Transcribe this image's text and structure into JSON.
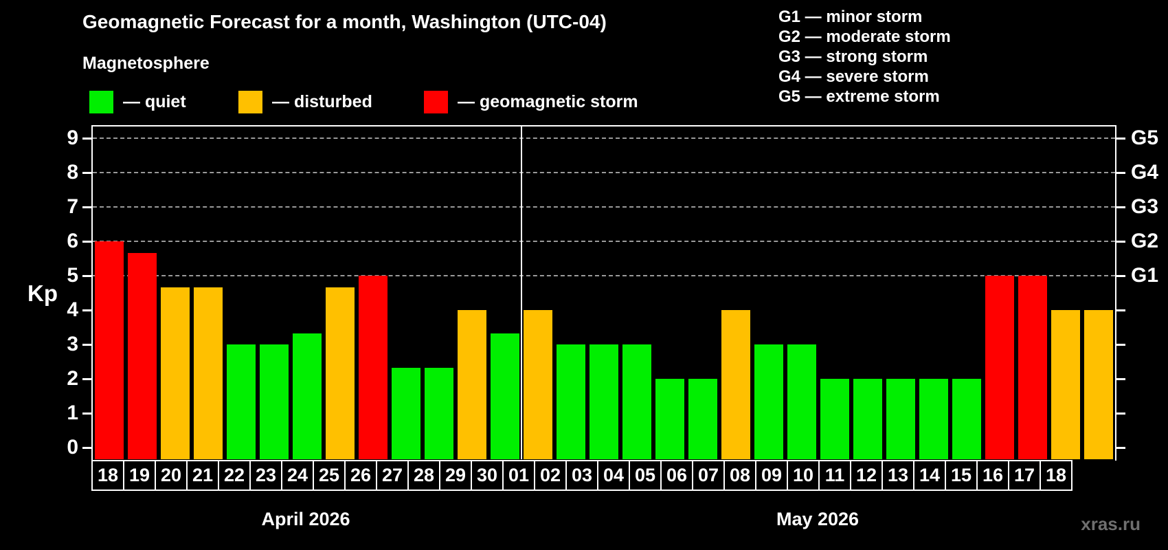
{
  "header": {
    "title": "Geomagnetic Forecast for a month, Washington (UTC-04)",
    "subtitle": "Magnetosphere",
    "legend": [
      {
        "key": "quiet",
        "label": "— quiet",
        "color": "#00ef00"
      },
      {
        "key": "disturbed",
        "label": "— disturbed",
        "color": "#ffc000"
      },
      {
        "key": "storm",
        "label": "— geomagnetic storm",
        "color": "#ff0000"
      }
    ],
    "g_scale_legend": [
      "G1 — minor storm",
      "G2 — moderate storm",
      "G3 — strong storm",
      "G4 — severe storm",
      "G5 — extreme storm"
    ]
  },
  "watermark": "xras.ru",
  "chart_data": {
    "type": "bar",
    "title": "Geomagnetic Forecast for a month, Washington (UTC-04)",
    "ylabel": "Kp",
    "ylim": [
      0,
      9
    ],
    "yticks": [
      0,
      1,
      2,
      3,
      4,
      5,
      6,
      7,
      8,
      9
    ],
    "gridlines_at": [
      5,
      6,
      7,
      8,
      9
    ],
    "grid": "dashed horizontal at storm levels only",
    "legend_position": "top",
    "g_levels": [
      {
        "kp": 5,
        "label": "G1"
      },
      {
        "kp": 6,
        "label": "G2"
      },
      {
        "kp": 7,
        "label": "G3"
      },
      {
        "kp": 8,
        "label": "G4"
      },
      {
        "kp": 9,
        "label": "G5"
      }
    ],
    "months": [
      {
        "key": "april",
        "label": "April 2026",
        "days": 13
      },
      {
        "key": "may",
        "label": "May 2026",
        "days": 18
      }
    ],
    "categories": [
      "18",
      "19",
      "20",
      "21",
      "22",
      "23",
      "24",
      "25",
      "26",
      "27",
      "28",
      "29",
      "30",
      "01",
      "02",
      "03",
      "04",
      "05",
      "06",
      "07",
      "08",
      "09",
      "10",
      "11",
      "12",
      "13",
      "14",
      "15",
      "16",
      "17",
      "18"
    ],
    "series": [
      {
        "name": "Kp forecast",
        "values": [
          6.0,
          5.67,
          4.67,
          4.67,
          3.0,
          3.0,
          3.33,
          4.67,
          5.0,
          2.33,
          2.33,
          4.0,
          3.33,
          4.0,
          3.0,
          3.0,
          3.0,
          2.0,
          2.0,
          4.0,
          3.0,
          3.0,
          2.0,
          2.0,
          2.0,
          2.0,
          2.0,
          5.0,
          5.0,
          4.0,
          4.0
        ]
      }
    ],
    "statuses": [
      "storm",
      "storm",
      "disturbed",
      "disturbed",
      "quiet",
      "quiet",
      "quiet",
      "disturbed",
      "storm",
      "quiet",
      "quiet",
      "disturbed",
      "quiet",
      "disturbed",
      "quiet",
      "quiet",
      "quiet",
      "quiet",
      "quiet",
      "disturbed",
      "quiet",
      "quiet",
      "quiet",
      "quiet",
      "quiet",
      "quiet",
      "quiet",
      "storm",
      "storm",
      "disturbed",
      "disturbed"
    ],
    "status_colors": {
      "quiet": "#00ef00",
      "disturbed": "#ffc000",
      "storm": "#ff0000"
    }
  }
}
